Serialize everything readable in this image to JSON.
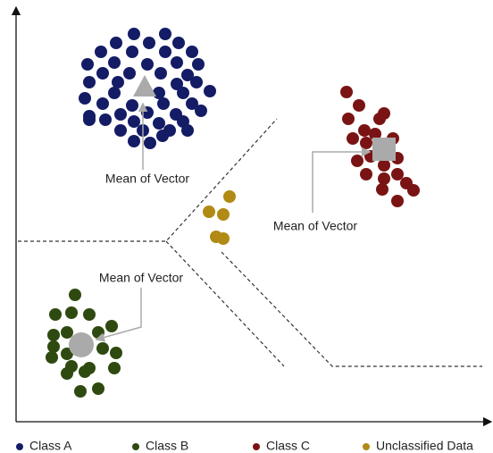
{
  "annotations": [
    "Mean of Vector",
    "Mean of Vector",
    "Mean of Vector"
  ],
  "legend": [
    {
      "label": "Class A",
      "color": "#141c66"
    },
    {
      "label": "Class B",
      "color": "#2f4a10"
    },
    {
      "label": "Class C",
      "color": "#7a1414"
    },
    {
      "label": "Unclassified Data",
      "color": "#b08a14"
    }
  ]
}
